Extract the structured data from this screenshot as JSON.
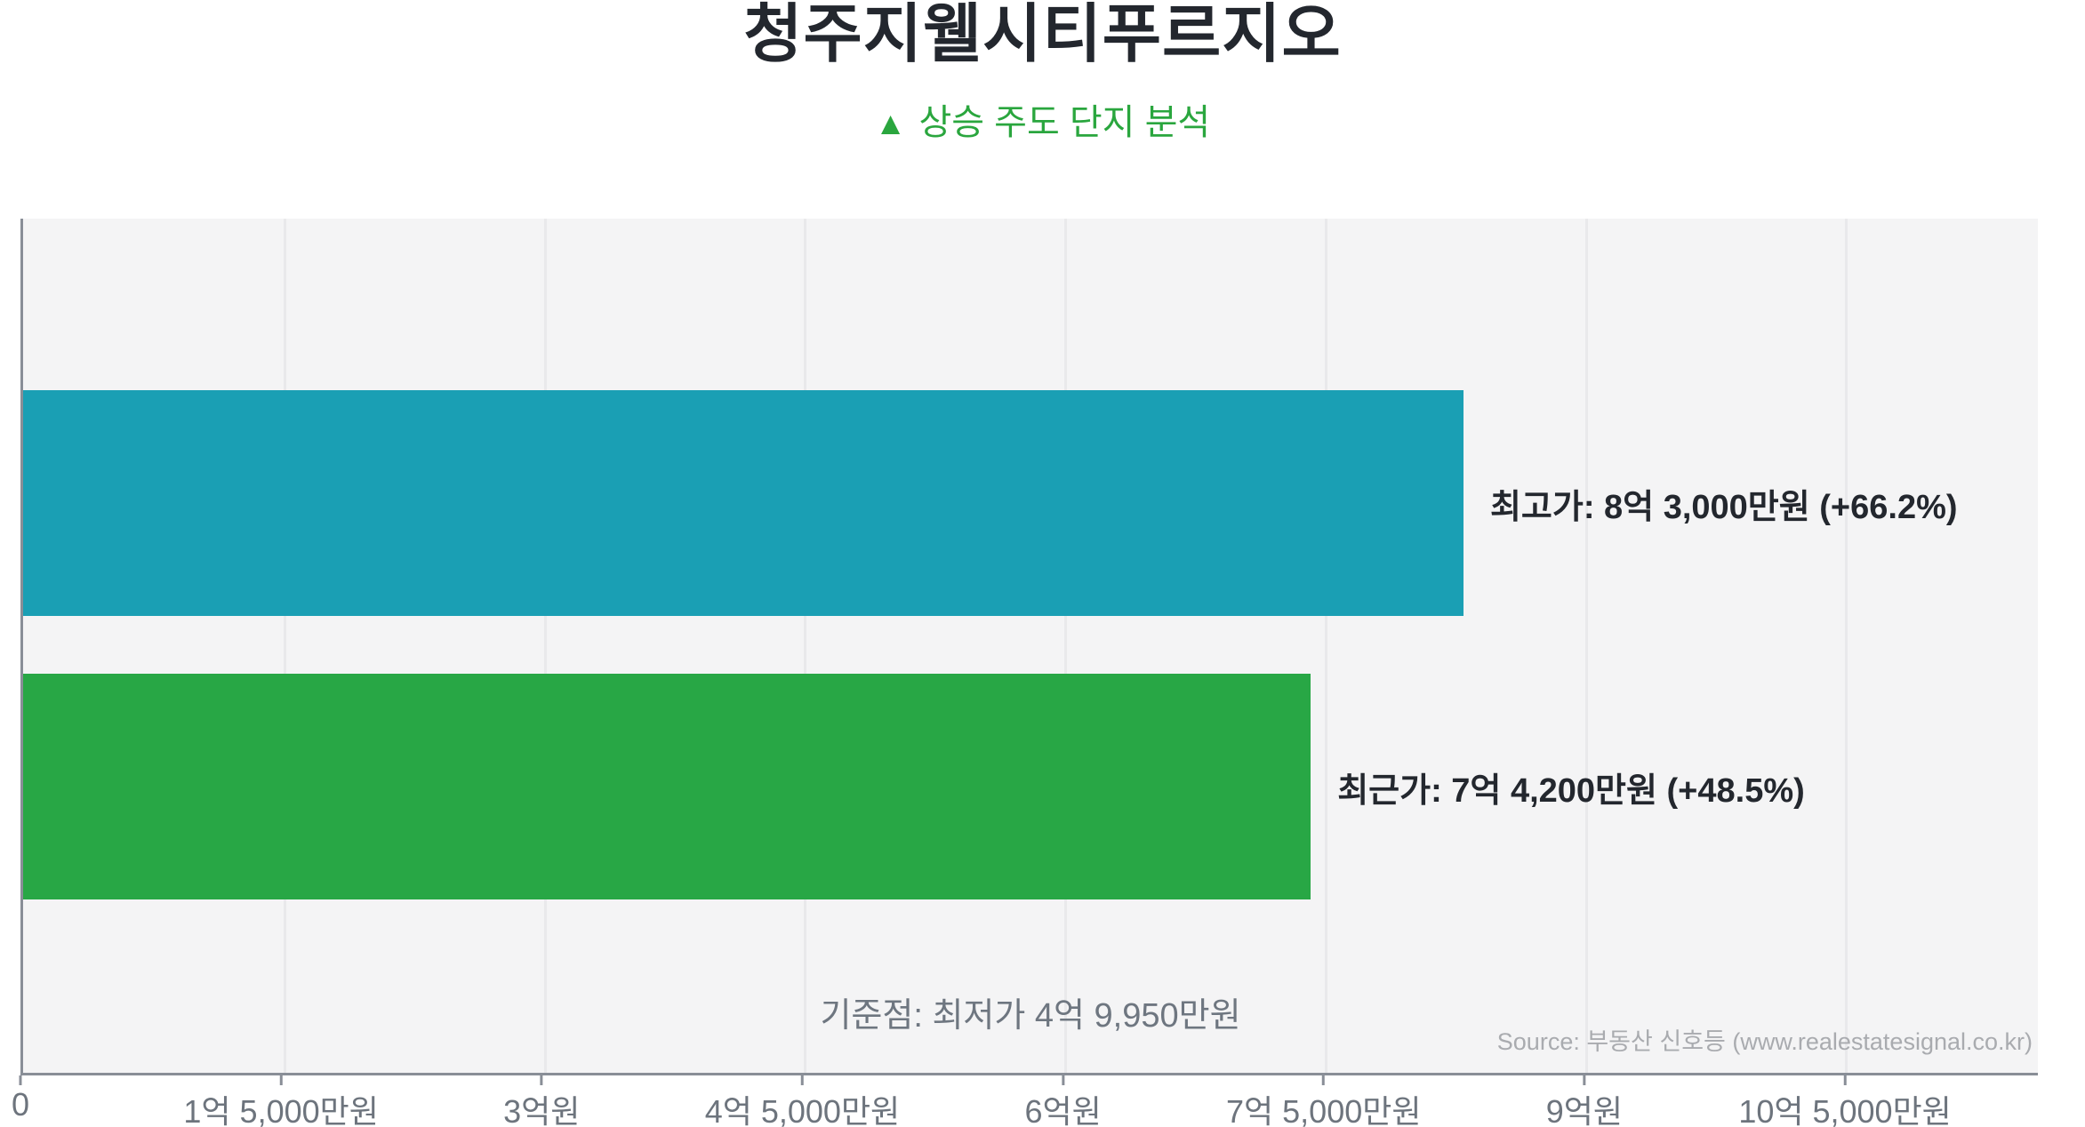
{
  "title": "청주지웰시티푸르지오",
  "subtitle": {
    "icon": "▲",
    "text": "상승 주도 단지 분석",
    "color": "#2aa63e"
  },
  "chart_data": {
    "type": "bar",
    "orientation": "horizontal",
    "title": "청주지웰시티푸르지오",
    "subtitle": "▲ 상승 주도 단지 분석",
    "unit": "KRW (억/만원)",
    "xlim": [
      0,
      11.61
    ],
    "grid": true,
    "legend": false,
    "x_ticks": [
      {
        "value": 0,
        "label": "0"
      },
      {
        "value": 1.5,
        "label": "1억 5,000만원"
      },
      {
        "value": 3,
        "label": "3억원"
      },
      {
        "value": 4.5,
        "label": "4억 5,000만원"
      },
      {
        "value": 6,
        "label": "6억원"
      },
      {
        "value": 7.5,
        "label": "7억 5,000만원"
      },
      {
        "value": 9,
        "label": "9억원"
      },
      {
        "value": 10.5,
        "label": "10억 5,000만원"
      }
    ],
    "bars": [
      {
        "name": "최고가",
        "value_eok": 8.3,
        "price_text": "8억 3,000만원",
        "pct_change": "+66.2%",
        "label": "최고가: 8억 3,000만원 (+66.2%)",
        "color": "#1a9fb4"
      },
      {
        "name": "최근가",
        "value_eok": 7.42,
        "price_text": "7억 4,200만원",
        "pct_change": "+48.5%",
        "label": "최근가: 7억 4,200만원 (+48.5%)",
        "color": "#28a745"
      }
    ],
    "baseline_note": "기준점: 최저가 4억 9,950만원",
    "baseline_value_eok": 4.995
  },
  "source": "Source: 부동산 신호등 (www.realestatesignal.co.kr)",
  "colors": {
    "title_text": "#23272e",
    "subtitle_green": "#2aa63e",
    "bar_teal": "#1a9fb4",
    "bar_green": "#28a745",
    "plot_background": "#f4f4f5",
    "gridline": "#e9e9eb",
    "axis_line": "#898e97",
    "tick_text": "#6d747d",
    "note_text": "#6e7680",
    "source_text": "#a9abaf"
  }
}
